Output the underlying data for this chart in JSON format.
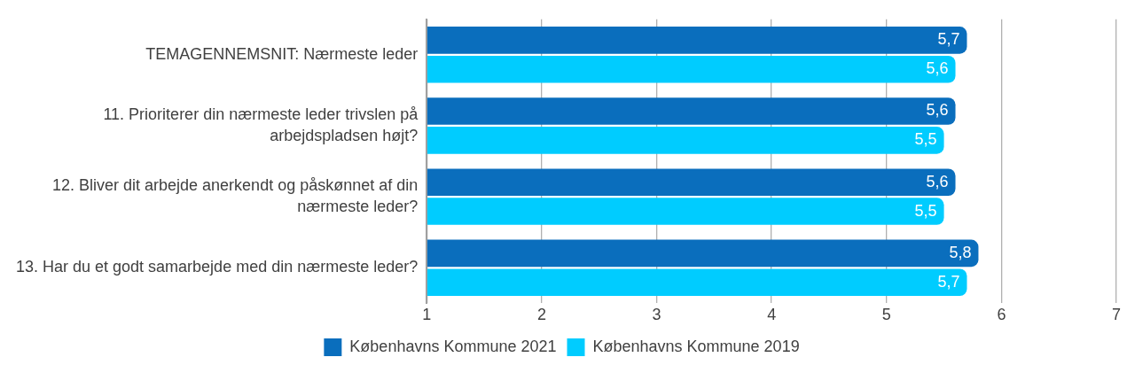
{
  "chart_data": {
    "type": "bar",
    "orientation": "horizontal",
    "categories": [
      "TEMAGENNEMSNIT: Nærmeste leder",
      "11. Prioriterer din nærmeste leder trivslen på arbejdspladsen højt?",
      "12. Bliver dit arbejde anerkendt og påskønnet af din nærmeste leder?",
      "13. Har du et godt samarbejde med din nærmeste leder?"
    ],
    "series": [
      {
        "name": "Københavns Kommune 2021",
        "color": "#0a6ebd",
        "values": [
          5.7,
          5.6,
          5.6,
          5.8
        ],
        "value_labels": [
          "5,7",
          "5,6",
          "5,6",
          "5,8"
        ]
      },
      {
        "name": "Københavns Kommune 2019",
        "color": "#00ccff",
        "values": [
          5.6,
          5.5,
          5.5,
          5.7
        ],
        "value_labels": [
          "5,6",
          "5,5",
          "5,5",
          "5,7"
        ]
      }
    ],
    "xlim": [
      1,
      7
    ],
    "xticks": [
      1,
      2,
      3,
      4,
      5,
      6,
      7
    ],
    "grid": "x",
    "legend": "bottom"
  }
}
